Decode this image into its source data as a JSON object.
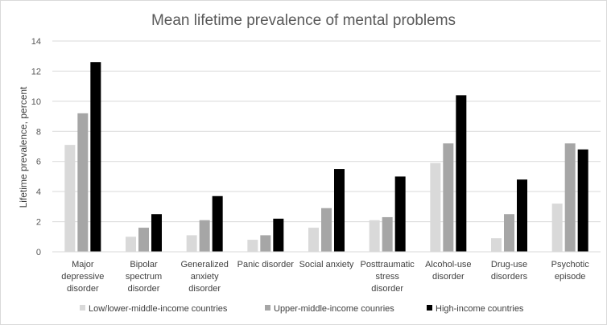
{
  "chart_data": {
    "type": "bar",
    "title": "Mean lifetime prevalence of mental problems",
    "xlabel": "",
    "ylabel": "Lifetime prevalence, percent",
    "ylim": [
      0,
      14
    ],
    "yticks": [
      0,
      2,
      4,
      6,
      8,
      10,
      12,
      14
    ],
    "grid": true,
    "legend_position": "bottom",
    "categories": [
      [
        "Major",
        "depressive",
        "disorder"
      ],
      [
        "Bipolar",
        "spectrum",
        "disorder"
      ],
      [
        "Generalized",
        "anxiety",
        "disorder"
      ],
      [
        "Panic disorder"
      ],
      [
        "Social anxiety"
      ],
      [
        "Posttraumatic",
        "stress",
        "disorder"
      ],
      [
        "Alcohol-use",
        "disorder"
      ],
      [
        "Drug-use",
        "disorders"
      ],
      [
        "Psychotic",
        "episode"
      ]
    ],
    "series": [
      {
        "name": "Low/lower-middle-income countries",
        "color": "#d9d9d9",
        "values": [
          7.1,
          1.0,
          1.1,
          0.8,
          1.6,
          2.1,
          5.9,
          0.9,
          3.2
        ]
      },
      {
        "name": "Upper-middle-income counries",
        "color": "#a6a6a6",
        "values": [
          9.2,
          1.6,
          2.1,
          1.1,
          2.9,
          2.3,
          7.2,
          2.5,
          7.2
        ]
      },
      {
        "name": "High-income countries",
        "color": "#000000",
        "values": [
          12.6,
          2.5,
          3.7,
          2.2,
          5.5,
          5.0,
          10.4,
          4.8,
          6.8
        ]
      }
    ]
  }
}
